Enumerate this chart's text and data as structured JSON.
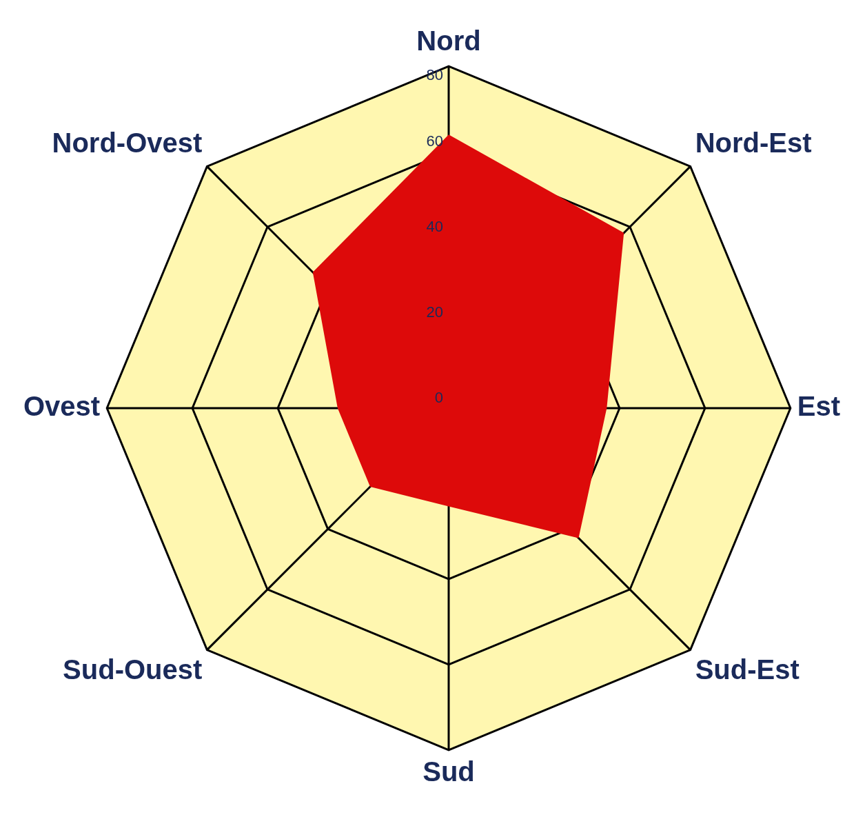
{
  "chart_data": {
    "type": "radar",
    "categories": [
      "Nord",
      "Nord-Est",
      "Est",
      "Sud-Est",
      "Sud",
      "Sud-Ouest",
      "Ovest",
      "Nord-Ovest"
    ],
    "series": [
      {
        "color": "#dd0a0a",
        "values": [
          64,
          58,
          37,
          43,
          23,
          26,
          26,
          45
        ]
      }
    ],
    "ylim": [
      0,
      80
    ],
    "yticks": [
      0,
      20,
      40,
      60,
      80
    ],
    "grid": true,
    "legend": false,
    "marker": "none"
  }
}
